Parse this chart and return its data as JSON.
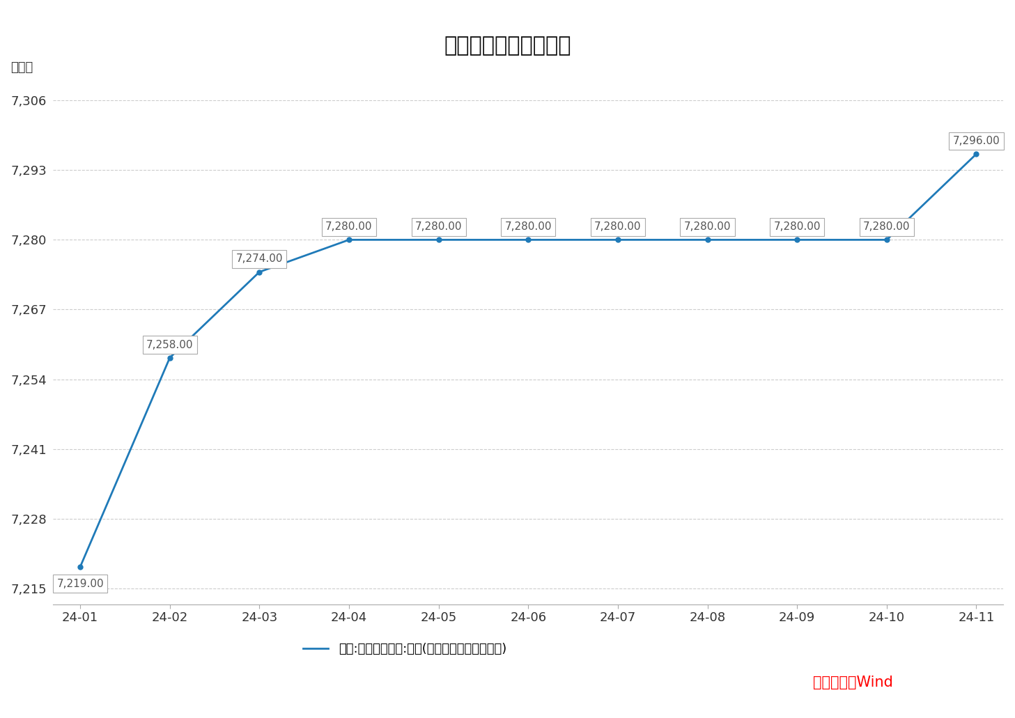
{
  "title": "我国黄金储备变化情况",
  "ylabel": "万盎司",
  "x_labels": [
    "24-01",
    "24-02",
    "24-03",
    "24-04",
    "24-05",
    "24-06",
    "24-07",
    "24-08",
    "24-09",
    "24-10",
    "24-11"
  ],
  "x_values": [
    0,
    1,
    2,
    3,
    4,
    5,
    6,
    7,
    8,
    9,
    10
  ],
  "y_values": [
    7219.0,
    7258.0,
    7274.0,
    7280.0,
    7280.0,
    7280.0,
    7280.0,
    7280.0,
    7280.0,
    7280.0,
    7296.0
  ],
  "yticks": [
    7215,
    7228,
    7241,
    7254,
    7267,
    7280,
    7293,
    7306
  ],
  "ylim": [
    7212,
    7309
  ],
  "line_color": "#1F7AB8",
  "line_width": 2.0,
  "bg_color": "#FFFFFF",
  "grid_color": "#CCCCCC",
  "annotation_box_color": "#FFFFFF",
  "annotation_box_edge": "#AAAAAA",
  "annotation_text_color": "#555555",
  "title_fontsize": 22,
  "label_fontsize": 13,
  "tick_fontsize": 13,
  "annotation_fontsize": 11,
  "legend_label": "中国:官方储备资产:黄金(以盎司计算的纯金数量)",
  "source_text": "数据来源：Wind",
  "source_color": "#FF0000",
  "label_y_offsets": [
    -12,
    8,
    8,
    8,
    8,
    8,
    8,
    8,
    8,
    8,
    8
  ]
}
